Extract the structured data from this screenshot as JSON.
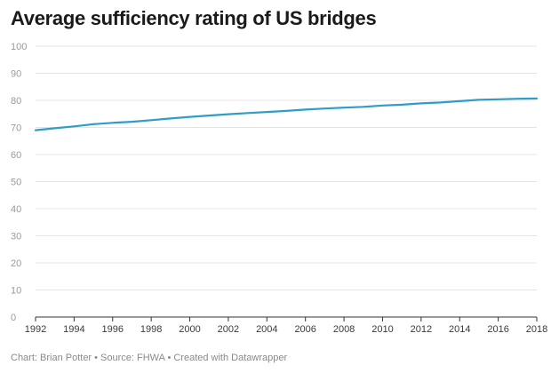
{
  "title": "Average sufficiency rating of US bridges",
  "footer": "Chart: Brian Potter • Source: FHWA • Created with Datawrapper",
  "colors": {
    "line": "#2f9cc9",
    "grid": "#e4e4e4",
    "axis": "#333333"
  },
  "chart_data": {
    "type": "line",
    "title": "Average sufficiency rating of US bridges",
    "xlabel": "",
    "ylabel": "",
    "x": [
      1992,
      1993,
      1994,
      1995,
      1996,
      1997,
      1998,
      1999,
      2000,
      2001,
      2002,
      2003,
      2004,
      2005,
      2006,
      2007,
      2008,
      2009,
      2010,
      2011,
      2012,
      2013,
      2014,
      2015,
      2016,
      2017,
      2018
    ],
    "series": [
      {
        "values": [
          69.0,
          69.7,
          70.4,
          71.2,
          71.7,
          72.1,
          72.7,
          73.3,
          73.9,
          74.4,
          74.9,
          75.3,
          75.7,
          76.1,
          76.6,
          77.0,
          77.3,
          77.6,
          78.1,
          78.4,
          78.9,
          79.2,
          79.7,
          80.2,
          80.4,
          80.6,
          80.7
        ]
      }
    ],
    "xlim": [
      1992,
      2018
    ],
    "ylim": [
      0,
      100
    ],
    "yticks": [
      0,
      10,
      20,
      30,
      40,
      50,
      60,
      70,
      80,
      90,
      100
    ],
    "xticks": [
      1992,
      1994,
      1996,
      1998,
      2000,
      2002,
      2004,
      2006,
      2008,
      2010,
      2012,
      2014,
      2016,
      2018
    ],
    "grid": true,
    "legend": "none"
  }
}
